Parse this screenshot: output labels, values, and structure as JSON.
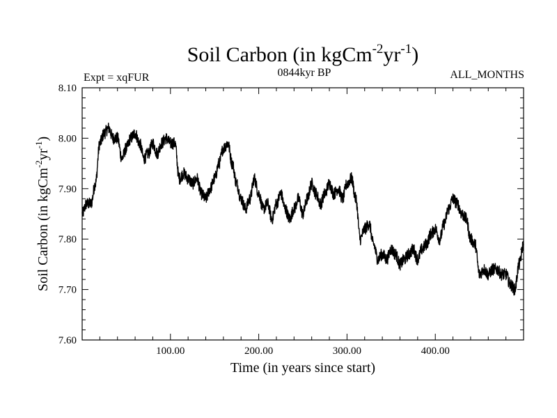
{
  "chart_data": {
    "type": "line",
    "title_main": "Soil Carbon (in kgCm",
    "title_exp1": "-2",
    "title_mid": "yr",
    "title_exp2": "-1",
    "title_close": ")",
    "expt_label": "Expt = xqFUR",
    "subtitle": "0844kyr BP",
    "months_label": "ALL_MONTHS",
    "xlabel": "Time (in years since start)",
    "ylabel_main": "Soil Carbon (in kgCm",
    "ylabel_exp1": "-2",
    "ylabel_mid": "yr",
    "ylabel_exp2": "-1",
    "ylabel_close": ")",
    "xlim": [
      0,
      500
    ],
    "ylim": [
      7.6,
      8.1
    ],
    "x_ticks": [
      {
        "value": 100,
        "label": "100.00"
      },
      {
        "value": 200,
        "label": "200.00"
      },
      {
        "value": 300,
        "label": "300.00"
      },
      {
        "value": 400,
        "label": "400.00"
      }
    ],
    "y_ticks": [
      {
        "value": 7.6,
        "label": "7.60"
      },
      {
        "value": 7.7,
        "label": "7.70"
      },
      {
        "value": 7.8,
        "label": "7.80"
      },
      {
        "value": 7.9,
        "label": "7.90"
      },
      {
        "value": 8.0,
        "label": "8.00"
      },
      {
        "value": 8.1,
        "label": "8.10"
      }
    ],
    "noise_amplitude": 0.012,
    "series": [
      {
        "name": "Soil Carbon",
        "color": "#000000",
        "x": [
          0,
          5,
          10,
          15,
          20,
          25,
          30,
          35,
          40,
          45,
          50,
          55,
          60,
          65,
          70,
          75,
          80,
          85,
          90,
          95,
          100,
          105,
          110,
          115,
          120,
          125,
          130,
          135,
          140,
          145,
          150,
          155,
          160,
          165,
          170,
          175,
          180,
          185,
          190,
          195,
          200,
          205,
          210,
          215,
          220,
          225,
          230,
          235,
          240,
          245,
          250,
          255,
          260,
          265,
          270,
          275,
          280,
          285,
          290,
          295,
          300,
          305,
          310,
          315,
          320,
          325,
          330,
          335,
          340,
          345,
          350,
          355,
          360,
          365,
          370,
          375,
          380,
          385,
          390,
          395,
          400,
          405,
          410,
          415,
          420,
          425,
          430,
          435,
          440,
          445,
          450,
          455,
          460,
          465,
          470,
          475,
          480,
          485,
          490,
          495,
          500
        ],
        "values": [
          7.85,
          7.87,
          7.87,
          7.91,
          7.99,
          8.01,
          8.02,
          8.0,
          8.0,
          7.96,
          7.98,
          8.0,
          8.01,
          7.99,
          7.96,
          7.97,
          7.99,
          7.97,
          7.99,
          8.0,
          7.99,
          7.99,
          7.92,
          7.93,
          7.92,
          7.91,
          7.92,
          7.89,
          7.88,
          7.9,
          7.92,
          7.95,
          7.98,
          7.99,
          7.95,
          7.91,
          7.88,
          7.86,
          7.88,
          7.92,
          7.89,
          7.86,
          7.87,
          7.84,
          7.87,
          7.89,
          7.86,
          7.84,
          7.86,
          7.88,
          7.85,
          7.88,
          7.91,
          7.89,
          7.87,
          7.89,
          7.91,
          7.89,
          7.9,
          7.88,
          7.91,
          7.92,
          7.88,
          7.8,
          7.82,
          7.83,
          7.79,
          7.76,
          7.77,
          7.76,
          7.78,
          7.77,
          7.75,
          7.76,
          7.77,
          7.78,
          7.76,
          7.78,
          7.79,
          7.81,
          7.82,
          7.8,
          7.83,
          7.86,
          7.88,
          7.87,
          7.85,
          7.84,
          7.8,
          7.79,
          7.73,
          7.74,
          7.73,
          7.74,
          7.74,
          7.73,
          7.73,
          7.71,
          7.7,
          7.75,
          7.79
        ]
      }
    ]
  }
}
